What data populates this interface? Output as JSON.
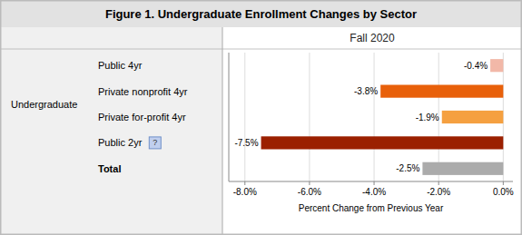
{
  "chart_data": {
    "type": "bar",
    "orientation": "horizontal",
    "title": "Figure 1. Undergraduate Enrollment Changes by Sector",
    "subtitle": "Fall 2020",
    "xlabel": "Percent Change from Previous Year",
    "annotations": [
      "Undergraduate",
      "?"
    ],
    "categories": [
      "Public 4yr",
      "Private nonprofit 4yr",
      "Private for-profit 4yr",
      "Public 2yr",
      "Total"
    ],
    "values": [
      -0.4,
      -3.8,
      -1.9,
      -7.5,
      -2.5
    ],
    "value_labels": [
      "-0.4%",
      "-3.8%",
      "-1.9%",
      "-7.5%",
      "-2.5%"
    ],
    "data_labels": true,
    "colors": [
      "#F2B8A8",
      "#E8600A",
      "#F5A040",
      "#9B2000",
      "#ABABAB"
    ],
    "xlim": [
      -8.5,
      0.3
    ],
    "xticks": [
      {
        "value": -8.0,
        "label": "-8.0%"
      },
      {
        "value": -6.0,
        "label": "-6.0%"
      },
      {
        "value": -4.0,
        "label": "-4.0%"
      },
      {
        "value": -2.0,
        "label": "-2.0%"
      },
      {
        "value": 0.0,
        "label": "0.0%"
      }
    ],
    "grid": true
  }
}
